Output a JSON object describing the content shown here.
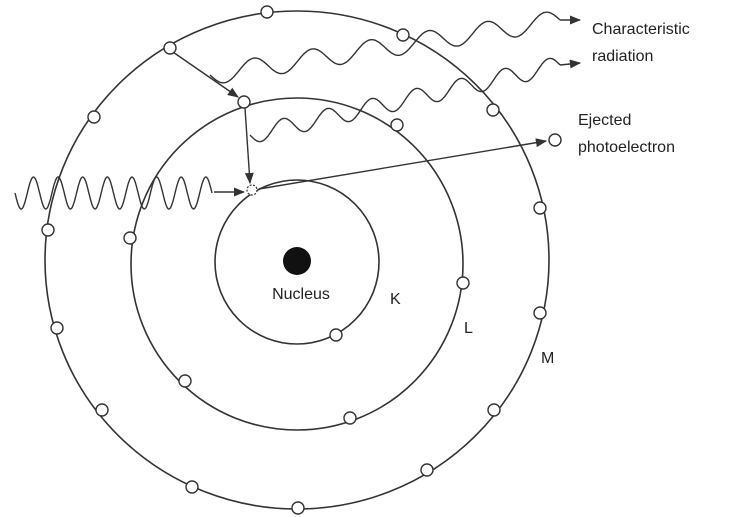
{
  "labels": {
    "characteristic": [
      "Characteristic",
      "radiation"
    ],
    "photoelectron": [
      "Ejected",
      "photoelectron"
    ],
    "nucleus": "Nucleus",
    "shells": [
      "K",
      "L",
      "M"
    ]
  }
}
